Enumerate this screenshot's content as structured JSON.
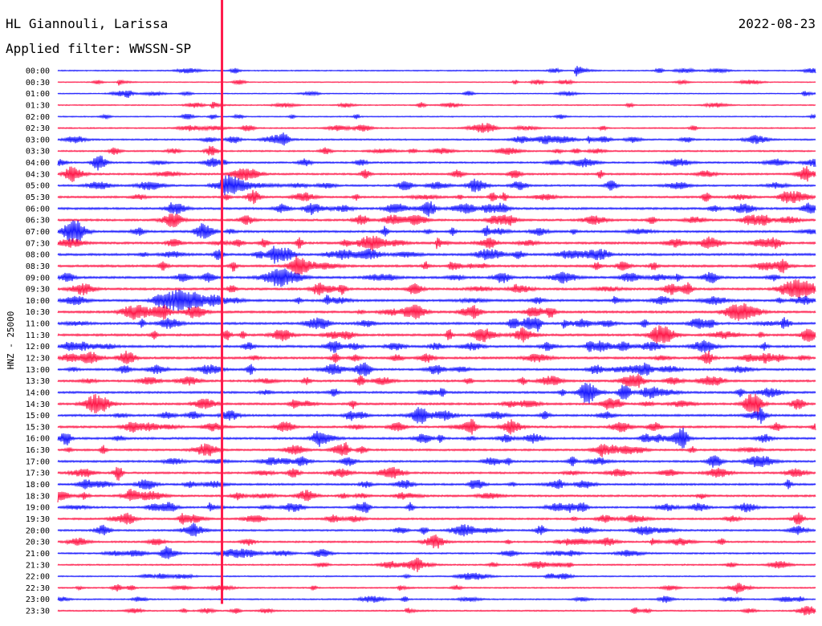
{
  "header": {
    "station": "HL Giannouli, Larissa",
    "date": "2022-08-23",
    "filter": "Applied filter: WWSSN-SP"
  },
  "side_label": "HNZ - 25000",
  "colors": {
    "odd_row": "#1a1aff",
    "even_row": "#ff1a4a",
    "background": "#ffffff"
  },
  "chart_data": {
    "type": "line",
    "description_kind": "helicorder",
    "grid": false,
    "row_labels": [
      "00:00",
      "00:30",
      "01:00",
      "01:30",
      "02:00",
      "02:30",
      "03:00",
      "03:30",
      "04:00",
      "04:30",
      "05:00",
      "05:30",
      "06:00",
      "06:30",
      "07:00",
      "07:30",
      "08:00",
      "08:30",
      "09:00",
      "09:30",
      "10:00",
      "10:30",
      "11:00",
      "11:30",
      "12:00",
      "12:30",
      "13:00",
      "13:30",
      "14:00",
      "14:30",
      "15:00",
      "15:30",
      "16:00",
      "16:30",
      "17:00",
      "17:30",
      "18:00",
      "18:30",
      "19:00",
      "19:30",
      "20:00",
      "20:30",
      "21:00",
      "21:30",
      "22:00",
      "22:30",
      "23:00",
      "23:30"
    ],
    "row_colors": [
      "blue",
      "red"
    ],
    "minutes_per_row": 30,
    "noise_level": [
      0.15,
      0.12,
      0.12,
      0.14,
      0.2,
      0.25,
      0.35,
      0.35,
      0.4,
      0.45,
      0.45,
      0.5,
      0.55,
      0.55,
      0.55,
      0.6,
      0.6,
      0.6,
      0.6,
      0.6,
      0.6,
      0.6,
      0.6,
      0.6,
      0.6,
      0.6,
      0.55,
      0.55,
      0.55,
      0.55,
      0.55,
      0.55,
      0.55,
      0.5,
      0.5,
      0.5,
      0.5,
      0.5,
      0.45,
      0.45,
      0.45,
      0.4,
      0.35,
      0.3,
      0.2,
      0.25,
      0.25,
      0.25
    ],
    "events": [
      {
        "row": 0,
        "minute": 20.5,
        "amplitude": 1.8
      },
      {
        "row": 2,
        "minute": 29.5,
        "amplitude": 0.8
      },
      {
        "row": 1,
        "minute": 2.4,
        "amplitude": 0.7
      },
      {
        "row": 3,
        "minute": 6.1,
        "amplitude": 0.9
      },
      {
        "row": 6,
        "minute": 21.0,
        "amplitude": 0.8
      },
      {
        "row": 10,
        "minute": 6.5,
        "amplitude": 30
      },
      {
        "row": 15,
        "minute": 15.0,
        "amplitude": 1.2
      },
      {
        "row": 20,
        "minute": 22.0,
        "amplitude": 1.1
      },
      {
        "row": 22,
        "minute": 20.0,
        "amplitude": 1.2
      },
      {
        "row": 38,
        "minute": 6.0,
        "amplitude": 1.0
      },
      {
        "row": 41,
        "minute": 23.5,
        "amplitude": 0.9
      },
      {
        "row": 45,
        "minute": 13.5,
        "amplitude": 0.6
      },
      {
        "row": 47,
        "minute": 13.8,
        "amplitude": 0.8
      }
    ]
  }
}
